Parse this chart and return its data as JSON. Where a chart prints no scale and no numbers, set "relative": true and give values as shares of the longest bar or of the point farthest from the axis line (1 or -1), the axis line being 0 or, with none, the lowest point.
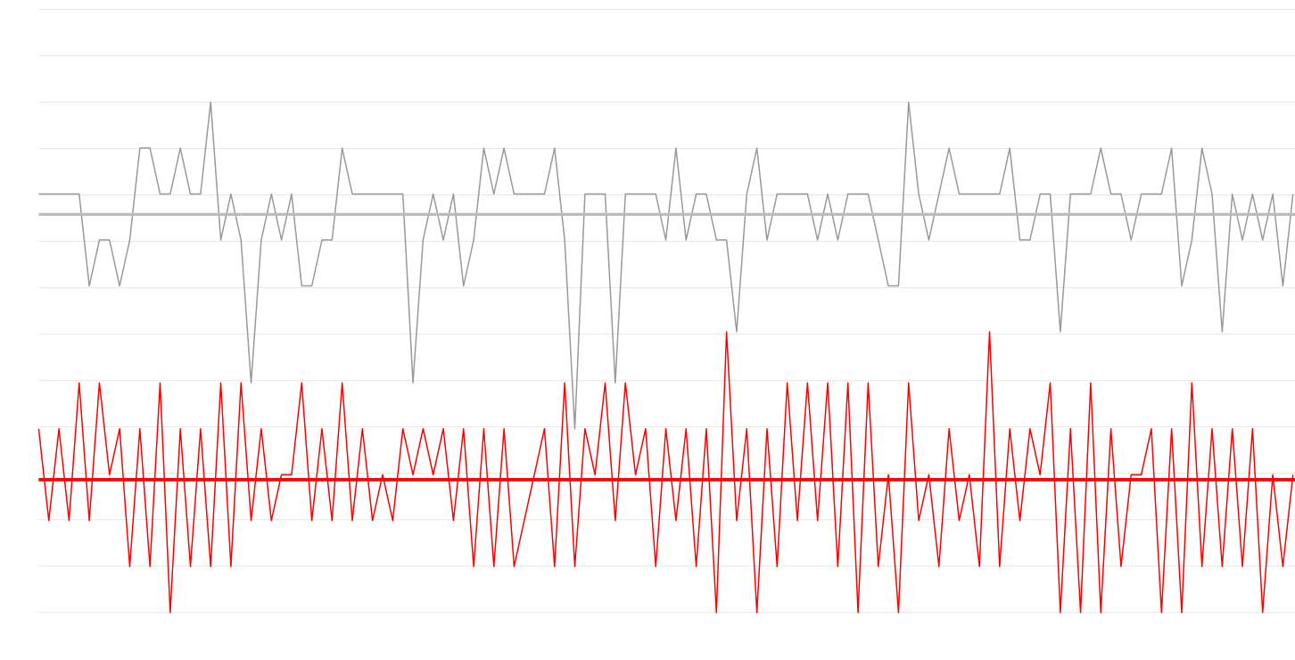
{
  "chart_data": {
    "type": "line",
    "relative": true,
    "grid": "y",
    "categories": [
      null,
      null,
      null,
      null,
      null,
      null,
      null,
      null,
      null,
      null,
      null,
      null,
      null,
      null,
      null,
      null,
      null,
      null,
      null,
      null,
      null,
      null,
      null,
      null,
      null,
      null,
      null,
      null,
      null,
      null,
      null,
      null,
      null,
      null,
      null,
      null,
      null,
      null,
      null,
      null,
      null,
      null,
      null,
      null,
      null,
      null,
      null,
      null,
      null,
      null,
      null,
      null,
      null,
      null,
      null,
      null,
      null,
      null,
      null,
      null,
      null,
      null,
      null,
      null,
      null,
      null,
      null,
      null,
      null,
      null,
      null,
      null,
      null,
      null,
      null,
      null,
      null,
      null,
      null,
      null,
      null,
      null,
      null,
      null,
      null,
      null,
      null,
      null,
      null,
      null,
      null,
      null,
      null,
      null,
      null,
      null,
      null,
      null,
      null,
      null,
      null,
      null,
      null,
      null,
      null,
      null,
      null,
      null,
      null,
      null,
      null,
      null,
      null,
      null,
      null,
      null,
      null,
      null,
      null,
      null,
      null,
      null,
      null,
      null,
      null
    ],
    "series": [
      {
        "color": "#999999",
        "values": [
          0.82,
          0.82,
          0.82,
          0.82,
          0.82,
          0.64,
          0.73,
          0.73,
          0.64,
          0.73,
          0.91,
          0.91,
          0.82,
          0.82,
          0.91,
          0.82,
          0.82,
          1,
          0.73,
          0.82,
          0.73,
          0.45,
          0.73,
          0.82,
          0.73,
          0.82,
          0.64,
          0.64,
          0.73,
          0.73,
          0.91,
          0.82,
          0.82,
          0.82,
          0.82,
          0.82,
          0.82,
          0.45,
          0.73,
          0.82,
          0.73,
          0.82,
          0.64,
          0.73,
          0.91,
          0.82,
          0.91,
          0.82,
          0.82,
          0.82,
          0.82,
          0.91,
          0.73,
          0.36,
          0.82,
          0.82,
          0.82,
          0.45,
          0.82,
          0.82,
          0.82,
          0.82,
          0.73,
          0.91,
          0.73,
          0.82,
          0.82,
          0.73,
          0.73,
          0.55,
          0.82,
          0.91,
          0.73,
          0.82,
          0.82,
          0.82,
          0.82,
          0.73,
          0.82,
          0.73,
          0.82,
          0.82,
          0.82,
          0.73,
          0.64,
          0.64,
          1,
          0.82,
          0.73,
          0.82,
          0.91,
          0.82,
          0.82,
          0.82,
          0.82,
          0.82,
          0.91,
          0.73,
          0.73,
          0.82,
          0.82,
          0.55,
          0.82,
          0.82,
          0.82,
          0.91,
          0.82,
          0.82,
          0.73,
          0.82,
          0.82,
          0.82,
          0.91,
          0.64,
          0.73,
          0.91,
          0.82,
          0.55,
          0.82,
          0.73,
          0.82,
          0.73,
          0.82,
          0.64,
          0.82
        ]
      },
      {
        "color": "#ff0000",
        "values": [
          0.36,
          0.18,
          0.36,
          0.18,
          0.45,
          0.18,
          0.45,
          0.27,
          0.36,
          0.09,
          0.36,
          0.09,
          0.45,
          0,
          0.36,
          0.09,
          0.36,
          0.09,
          0.45,
          0.09,
          0.45,
          0.18,
          0.36,
          0.18,
          0.27,
          0.27,
          0.45,
          0.18,
          0.36,
          0.18,
          0.45,
          0.18,
          0.36,
          0.18,
          0.27,
          0.18,
          0.36,
          0.27,
          0.36,
          0.27,
          0.36,
          0.18,
          0.36,
          0.09,
          0.36,
          0.09,
          0.36,
          0.09,
          0.18,
          0.27,
          0.36,
          0.09,
          0.45,
          0.09,
          0.36,
          0.27,
          0.45,
          0.18,
          0.45,
          0.27,
          0.36,
          0.09,
          0.36,
          0.18,
          0.36,
          0.09,
          0.36,
          0,
          0.55,
          0.18,
          0.36,
          0,
          0.36,
          0.09,
          0.45,
          0.18,
          0.45,
          0.18,
          0.45,
          0.09,
          0.45,
          0,
          0.45,
          0.09,
          0.27,
          0,
          0.45,
          0.18,
          0.27,
          0.09,
          0.36,
          0.18,
          0.27,
          0.09,
          0.55,
          0.09,
          0.36,
          0.18,
          0.36,
          0.27,
          0.45,
          0,
          0.36,
          0,
          0.45,
          0,
          0.36,
          0.09,
          0.27,
          0.27,
          0.36,
          0,
          0.36,
          0,
          0.45,
          0.09,
          0.36,
          0.09,
          0.36,
          0.09,
          0.36,
          0,
          0.27,
          0.09,
          0.27
        ]
      }
    ],
    "ref_lines": [
      {
        "axis": "y",
        "value": 0.78,
        "color": "#bbbbbb"
      },
      {
        "axis": "y",
        "value": 0.26,
        "color": "#ff0000"
      }
    ]
  }
}
